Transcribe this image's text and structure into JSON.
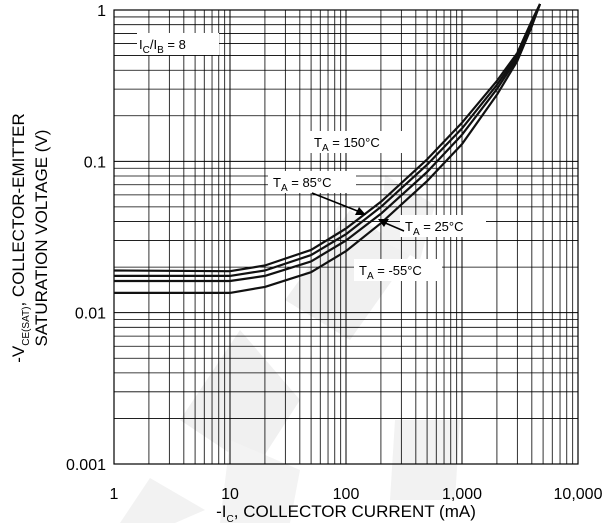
{
  "chart_data": {
    "type": "line",
    "x_scale": "log",
    "y_scale": "log",
    "xlim": [
      1,
      10000
    ],
    "ylim": [
      0.001,
      1
    ],
    "grid": true,
    "x_tick_labels": [
      "1",
      "10",
      "100",
      "1,000",
      "10,000"
    ],
    "y_tick_labels": [
      "1",
      "0.1",
      "0.01",
      "0.001"
    ],
    "xlabel": {
      "main": "-I",
      "sub": "C",
      "rest": ", COLLECTOR CURRENT (mA)"
    },
    "ylabel_line1": {
      "main": "-V",
      "sub": "CE(SAT)",
      "rest": ", COLLECTOR-EMITTER"
    },
    "ylabel_line2": "SATURATION VOLTAGE (V)",
    "condition": {
      "part1": "I",
      "sub1": "C",
      "part2": "/I",
      "sub2": "B",
      "part3": " = 8"
    },
    "series": [
      {
        "name": "T_A = 150°C",
        "x": [
          1,
          10,
          20,
          50,
          100,
          200,
          500,
          1000,
          2000,
          3000,
          4000,
          4700
        ],
        "y": [
          0.019,
          0.0188,
          0.0205,
          0.026,
          0.036,
          0.054,
          0.103,
          0.18,
          0.34,
          0.52,
          0.85,
          1.15
        ]
      },
      {
        "name": "T_A = 85°C",
        "x": [
          1,
          10,
          20,
          50,
          100,
          200,
          500,
          1000,
          2000,
          3000,
          4000,
          4700
        ],
        "y": [
          0.0175,
          0.0175,
          0.019,
          0.024,
          0.033,
          0.05,
          0.095,
          0.165,
          0.32,
          0.5,
          0.82,
          1.15
        ]
      },
      {
        "name": "T_A = 25°C",
        "x": [
          1,
          10,
          20,
          50,
          100,
          200,
          500,
          1000,
          2000,
          3000,
          4000,
          4700
        ],
        "y": [
          0.0162,
          0.0162,
          0.0175,
          0.0218,
          0.03,
          0.045,
          0.085,
          0.15,
          0.3,
          0.48,
          0.8,
          1.15
        ]
      },
      {
        "name": "T_A = -55°C",
        "x": [
          1,
          10,
          20,
          50,
          100,
          200,
          500,
          1000,
          2000,
          3000,
          4000,
          4700
        ],
        "y": [
          0.0135,
          0.0135,
          0.0148,
          0.0185,
          0.0255,
          0.039,
          0.074,
          0.13,
          0.275,
          0.46,
          0.78,
          1.15
        ]
      }
    ],
    "annotations": [
      {
        "prefix": "T",
        "sub": "A",
        "text": " = 150°C"
      },
      {
        "prefix": "T",
        "sub": "A",
        "text": " = 85°C"
      },
      {
        "prefix": "T",
        "sub": "A",
        "text": " = 25°C"
      },
      {
        "prefix": "T",
        "sub": "A",
        "text": " = -55°C"
      }
    ]
  }
}
